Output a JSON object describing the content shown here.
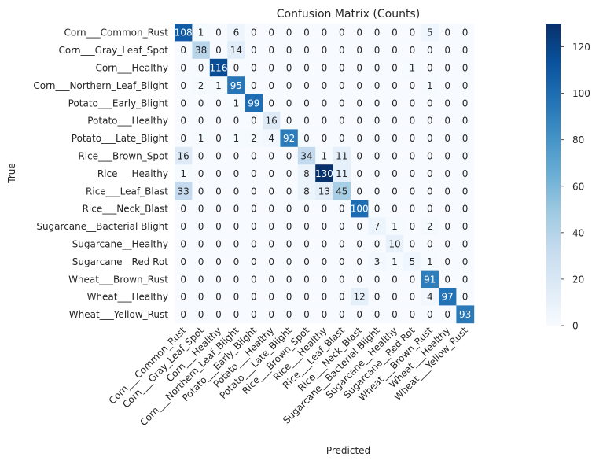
{
  "chart_data": {
    "type": "heatmap",
    "title": "Confusion Matrix (Counts)",
    "xlabel": "Predicted",
    "ylabel": "True",
    "labels": [
      "Corn___Common_Rust",
      "Corn___Gray_Leaf_Spot",
      "Corn___Healthy",
      "Corn___Northern_Leaf_Blight",
      "Potato___Early_Blight",
      "Potato___Healthy",
      "Potato___Late_Blight",
      "Rice___Brown_Spot",
      "Rice___Healthy",
      "Rice___Leaf_Blast",
      "Rice___Neck_Blast",
      "Sugarcane__Bacterial Blight",
      "Sugarcane__Healthy",
      "Sugarcane__Red Rot",
      "Wheat___Brown_Rust",
      "Wheat___Healthy",
      "Wheat___Yellow_Rust"
    ],
    "matrix": [
      [
        108,
        1,
        0,
        6,
        0,
        0,
        0,
        0,
        0,
        0,
        0,
        0,
        0,
        0,
        5,
        0,
        0
      ],
      [
        0,
        38,
        0,
        14,
        0,
        0,
        0,
        0,
        0,
        0,
        0,
        0,
        0,
        0,
        0,
        0,
        0
      ],
      [
        0,
        0,
        116,
        0,
        0,
        0,
        0,
        0,
        0,
        0,
        0,
        0,
        0,
        1,
        0,
        0,
        0
      ],
      [
        0,
        2,
        1,
        95,
        0,
        0,
        0,
        0,
        0,
        0,
        0,
        0,
        0,
        0,
        1,
        0,
        0
      ],
      [
        0,
        0,
        0,
        1,
        99,
        0,
        0,
        0,
        0,
        0,
        0,
        0,
        0,
        0,
        0,
        0,
        0
      ],
      [
        0,
        0,
        0,
        0,
        0,
        16,
        0,
        0,
        0,
        0,
        0,
        0,
        0,
        0,
        0,
        0,
        0
      ],
      [
        0,
        1,
        0,
        1,
        2,
        4,
        92,
        0,
        0,
        0,
        0,
        0,
        0,
        0,
        0,
        0,
        0
      ],
      [
        16,
        0,
        0,
        0,
        0,
        0,
        0,
        34,
        1,
        11,
        0,
        0,
        0,
        0,
        0,
        0,
        0
      ],
      [
        1,
        0,
        0,
        0,
        0,
        0,
        0,
        8,
        130,
        11,
        0,
        0,
        0,
        0,
        0,
        0,
        0
      ],
      [
        33,
        0,
        0,
        0,
        0,
        0,
        0,
        8,
        13,
        45,
        0,
        0,
        0,
        0,
        0,
        0,
        0
      ],
      [
        0,
        0,
        0,
        0,
        0,
        0,
        0,
        0,
        0,
        0,
        100,
        0,
        0,
        0,
        0,
        0,
        0
      ],
      [
        0,
        0,
        0,
        0,
        0,
        0,
        0,
        0,
        0,
        0,
        0,
        7,
        1,
        0,
        2,
        0,
        0
      ],
      [
        0,
        0,
        0,
        0,
        0,
        0,
        0,
        0,
        0,
        0,
        0,
        0,
        10,
        0,
        0,
        0,
        0
      ],
      [
        0,
        0,
        0,
        0,
        0,
        0,
        0,
        0,
        0,
        0,
        0,
        3,
        1,
        5,
        1,
        0,
        0
      ],
      [
        0,
        0,
        0,
        0,
        0,
        0,
        0,
        0,
        0,
        0,
        0,
        0,
        0,
        0,
        91,
        0,
        0
      ],
      [
        0,
        0,
        0,
        0,
        0,
        0,
        0,
        0,
        0,
        0,
        12,
        0,
        0,
        0,
        4,
        97,
        0
      ],
      [
        0,
        0,
        0,
        0,
        0,
        0,
        0,
        0,
        0,
        0,
        0,
        0,
        0,
        0,
        0,
        0,
        93
      ]
    ],
    "colorbar": {
      "min": 0,
      "max": 130,
      "ticks": [
        0,
        20,
        40,
        60,
        80,
        100,
        120
      ],
      "colormap": "Blues"
    }
  }
}
